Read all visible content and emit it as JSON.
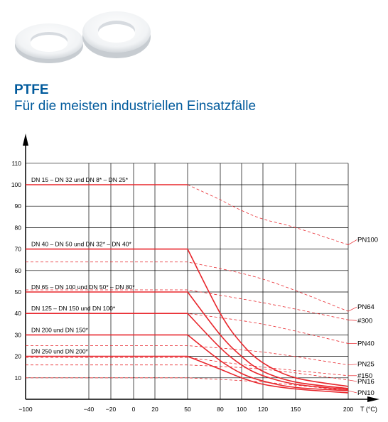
{
  "header": {
    "title": "PTFE",
    "subtitle": "Für die meisten industriellen Einsatzfälle"
  },
  "chart_data": {
    "type": "line",
    "title": "",
    "xlabel": "T (°C)",
    "ylabel": "",
    "grid": true,
    "x_ticks": [
      "-100",
      "-40",
      "-20",
      "0",
      "20",
      "50",
      "80",
      "100",
      "120",
      "150",
      "200"
    ],
    "y_ticks": [
      "10",
      "20",
      "30",
      "40",
      "50",
      "60",
      "70",
      "80",
      "90",
      "100",
      "110"
    ],
    "ylim": [
      0,
      110
    ],
    "colors": {
      "curve": "#e8262c",
      "grid": "#000000"
    },
    "series": [
      {
        "name": "DN 15 – DN 32 und DN 8* – DN 25*",
        "x": [
          "-100",
          "50"
        ],
        "y": [
          100,
          100
        ]
      },
      {
        "name": "DN 40 – DN 50 und DN 32* – DN 40*",
        "x": [
          "-100",
          "50",
          "80",
          "100",
          "120",
          "150",
          "200"
        ],
        "y": [
          70,
          70,
          40,
          26,
          17,
          10,
          6
        ]
      },
      {
        "name": "DN 65 – DN 100 und DN 50* – DN 80*",
        "x": [
          "-100",
          "50",
          "80",
          "100",
          "120",
          "150",
          "200"
        ],
        "y": [
          50,
          50,
          30,
          20,
          13,
          8,
          5
        ]
      },
      {
        "name": "DN 125 – DN 150 und DN 100*",
        "x": [
          "-100",
          "50",
          "80",
          "100",
          "120",
          "150",
          "200"
        ],
        "y": [
          40,
          40,
          24,
          16,
          11,
          7,
          4.5
        ]
      },
      {
        "name": "DN 200 und DN 150*",
        "x": [
          "-100",
          "50",
          "80",
          "100",
          "120",
          "150",
          "200"
        ],
        "y": [
          30,
          30,
          18,
          12,
          8.5,
          5.5,
          4
        ]
      },
      {
        "name": "DN 250 und DN 200*",
        "x": [
          "-100",
          "50",
          "80",
          "100",
          "120",
          "150",
          "200"
        ],
        "y": [
          20,
          20,
          14,
          10,
          7,
          4.8,
          3
        ]
      }
    ],
    "reference_lines": [
      {
        "name": "PN100",
        "x": [
          "50",
          "80",
          "100",
          "120",
          "150",
          "200"
        ],
        "y": [
          100,
          93,
          88,
          84,
          80,
          72
        ]
      },
      {
        "name": "PN64",
        "x": [
          "-100",
          "50",
          "120",
          "200"
        ],
        "y": [
          64,
          64,
          56,
          41
        ]
      },
      {
        "name": "#300",
        "x": [
          "-100",
          "50",
          "120",
          "200"
        ],
        "y": [
          51,
          51,
          45,
          37
        ]
      },
      {
        "name": "PN40",
        "x": [
          "-100",
          "50",
          "120",
          "200"
        ],
        "y": [
          40,
          40,
          35,
          26
        ]
      },
      {
        "name": "PN25",
        "x": [
          "-100",
          "50",
          "120",
          "200"
        ],
        "y": [
          25,
          25,
          22,
          16
        ]
      },
      {
        "name": "#150",
        "x": [
          "-100",
          "50",
          "120",
          "200"
        ],
        "y": [
          19.5,
          19.5,
          15,
          11
        ]
      },
      {
        "name": "PN16",
        "x": [
          "-100",
          "50",
          "120",
          "200"
        ],
        "y": [
          16,
          16,
          14,
          9
        ]
      },
      {
        "name": "PN10",
        "x": [
          "-100",
          "50",
          "120",
          "200"
        ],
        "y": [
          10,
          10,
          8,
          4
        ]
      }
    ]
  }
}
